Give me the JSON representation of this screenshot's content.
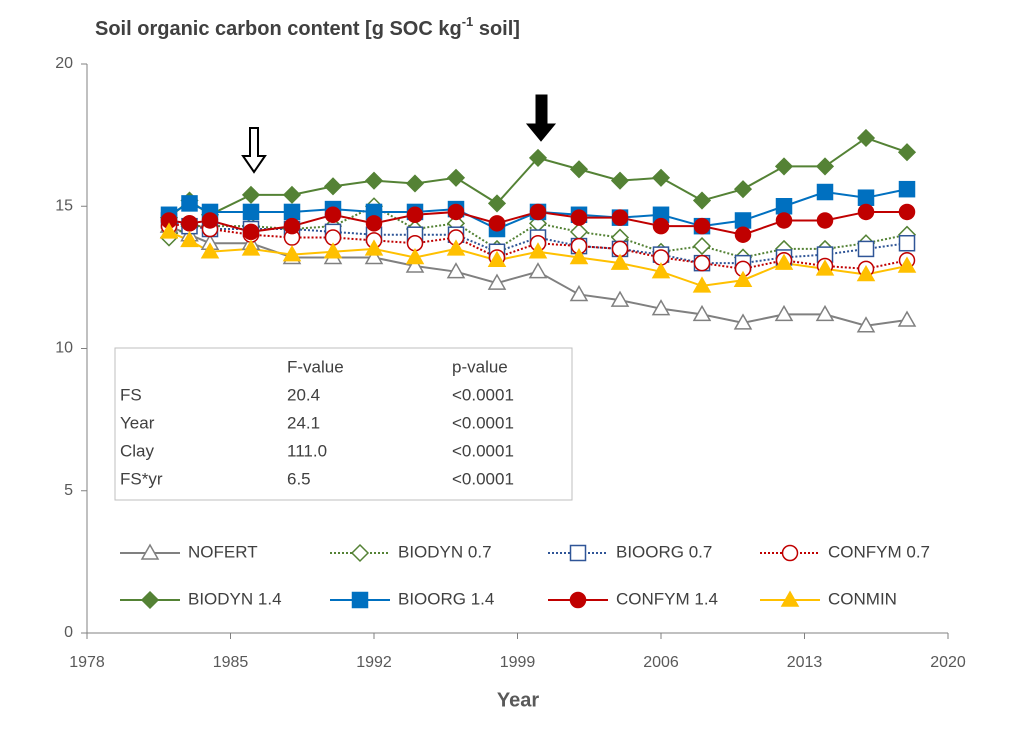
{
  "chart_data": {
    "type": "line",
    "title": [
      "Soil organic carbon content [g SOC kg",
      "-1",
      " soil]"
    ],
    "x_label": "Year",
    "x": [
      1982,
      1983,
      1984,
      1986,
      1988,
      1990,
      1992,
      1994,
      1996,
      1998,
      2000,
      2002,
      2004,
      2006,
      2008,
      2010,
      2012,
      2014,
      2016,
      2018
    ],
    "xlim": [
      1978,
      2020
    ],
    "xticks": [
      1978,
      1985,
      1992,
      1999,
      2006,
      2013,
      2020
    ],
    "ylim": [
      0,
      20
    ],
    "yticks": [
      0,
      5,
      10,
      15,
      20
    ],
    "grid": false,
    "series": [
      {
        "name": "NOFERT",
        "color": "#808080",
        "marker": "triangle",
        "filled": false,
        "dashed": false,
        "values": [
          14.3,
          14.0,
          13.7,
          13.7,
          13.2,
          13.2,
          13.2,
          12.9,
          12.7,
          12.3,
          12.7,
          11.9,
          11.7,
          11.4,
          11.2,
          10.9,
          11.2,
          11.2,
          10.8,
          11.0
        ]
      },
      {
        "name": "BIODYN 0.7",
        "color": "#548235",
        "marker": "diamond",
        "filled": false,
        "dashed": true,
        "values": [
          13.9,
          14.3,
          14.3,
          14.3,
          14.2,
          14.3,
          15.0,
          14.2,
          14.4,
          13.5,
          14.4,
          14.1,
          13.9,
          13.4,
          13.6,
          13.2,
          13.5,
          13.5,
          13.7,
          14.0
        ]
      },
      {
        "name": "BIOORG 0.7",
        "color": "#2f5597",
        "marker": "square",
        "filled": false,
        "dashed": true,
        "values": [
          14.5,
          14.3,
          14.2,
          14.2,
          14.2,
          14.1,
          14.0,
          14.0,
          14.0,
          13.4,
          13.9,
          13.6,
          13.5,
          13.3,
          13.0,
          13.0,
          13.2,
          13.3,
          13.5,
          13.7
        ]
      },
      {
        "name": "CONFYM 0.7",
        "color": "#c00000",
        "marker": "circle",
        "filled": false,
        "dashed": true,
        "values": [
          14.3,
          14.4,
          14.2,
          14.0,
          13.9,
          13.9,
          13.8,
          13.7,
          13.9,
          13.2,
          13.7,
          13.6,
          13.5,
          13.2,
          13.0,
          12.8,
          13.1,
          12.9,
          12.8,
          13.1
        ]
      },
      {
        "name": "BIODYN 1.4",
        "color": "#548235",
        "marker": "diamond",
        "filled": true,
        "dashed": false,
        "values": [
          14.6,
          15.2,
          14.7,
          15.4,
          15.4,
          15.7,
          15.9,
          15.8,
          16.0,
          15.1,
          16.7,
          16.3,
          15.9,
          16.0,
          15.2,
          15.6,
          16.4,
          16.4,
          17.4,
          16.9
        ]
      },
      {
        "name": "BIOORG 1.4",
        "color": "#0070c0",
        "marker": "square",
        "filled": true,
        "dashed": false,
        "values": [
          14.7,
          15.1,
          14.8,
          14.8,
          14.8,
          14.9,
          14.8,
          14.8,
          14.9,
          14.2,
          14.8,
          14.7,
          14.6,
          14.7,
          14.3,
          14.5,
          15.0,
          15.5,
          15.3,
          15.6
        ]
      },
      {
        "name": "CONFYM 1.4",
        "color": "#c00000",
        "marker": "circle",
        "filled": true,
        "dashed": false,
        "values": [
          14.5,
          14.4,
          14.5,
          14.1,
          14.3,
          14.7,
          14.4,
          14.7,
          14.8,
          14.4,
          14.8,
          14.6,
          14.6,
          14.3,
          14.3,
          14.0,
          14.5,
          14.5,
          14.8,
          14.8
        ]
      },
      {
        "name": "CONMIN",
        "color": "#ffc000",
        "marker": "triangle",
        "filled": true,
        "dashed": false,
        "values": [
          14.1,
          13.8,
          13.4,
          13.5,
          13.3,
          13.4,
          13.5,
          13.2,
          13.5,
          13.1,
          13.4,
          13.2,
          13.0,
          12.7,
          12.2,
          12.4,
          13.0,
          12.8,
          12.6,
          12.9
        ]
      }
    ],
    "stats_table": {
      "header": [
        "F-value",
        "p-value"
      ],
      "rows": [
        [
          "FS",
          "20.4",
          "<0.0001"
        ],
        [
          "Year",
          "24.1",
          "<0.0001"
        ],
        [
          "Clay",
          "111.0",
          "<0.0001"
        ],
        [
          "FS*yr",
          "6.5",
          "<0.0001"
        ]
      ]
    }
  }
}
